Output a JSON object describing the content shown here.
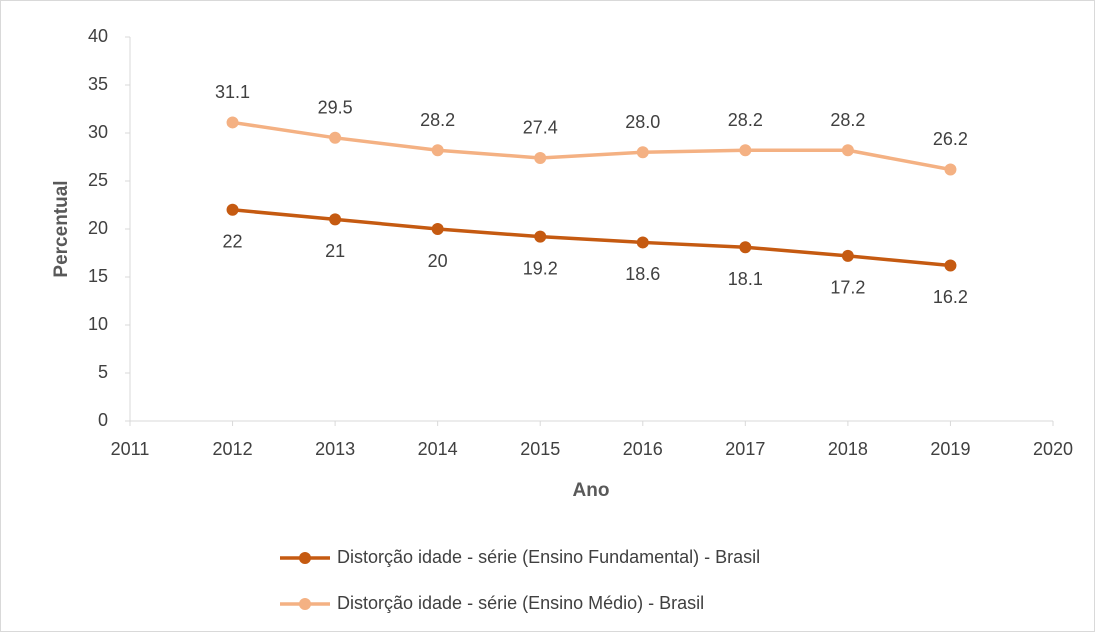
{
  "chart_data": {
    "type": "line",
    "xlabel": "Ano",
    "ylabel": "Percentual",
    "x": [
      2012,
      2013,
      2014,
      2015,
      2016,
      2017,
      2018,
      2019
    ],
    "xlim": [
      2011,
      2020
    ],
    "xticks": [
      2011,
      2012,
      2013,
      2014,
      2015,
      2016,
      2017,
      2018,
      2019,
      2020
    ],
    "ylim": [
      0,
      40
    ],
    "yticks": [
      0,
      5,
      10,
      15,
      20,
      25,
      30,
      35,
      40
    ],
    "grid": false,
    "legend": "bottom",
    "series": [
      {
        "name": "Distorção idade - série (Ensino Fundamental) - Brasil",
        "color": "#c55a11",
        "values": [
          22,
          21,
          20,
          19.2,
          18.6,
          18.1,
          17.2,
          16.2
        ],
        "label_position": "below"
      },
      {
        "name": "Distorção idade - série (Ensino Médio) - Brasil",
        "color": "#f4b183",
        "values": [
          31.1,
          29.5,
          28.2,
          27.4,
          28.0,
          28.2,
          28.2,
          26.2
        ],
        "value_labels": [
          "31.1",
          "29.5",
          "28.2",
          "27.4",
          "28.0",
          "28.2",
          "28.2",
          "26.2"
        ],
        "label_position": "above"
      }
    ]
  }
}
